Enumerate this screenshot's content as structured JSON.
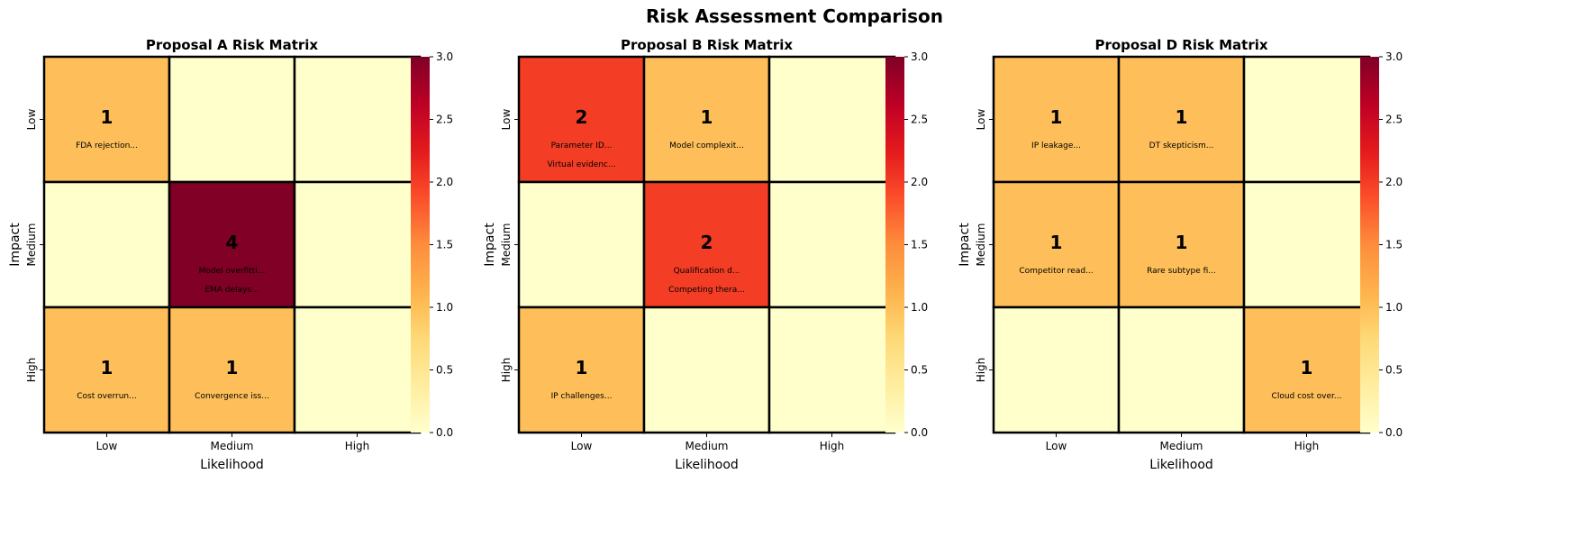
{
  "figure_title": "Risk Assessment Comparison",
  "colorbar_ticks": [
    "0.0",
    "0.5",
    "1.0",
    "1.5",
    "2.0",
    "2.5",
    "3.0"
  ],
  "colormap": [
    "#ffffcc",
    "#ffeda0",
    "#fed976",
    "#feb24c",
    "#fd8d3c",
    "#fc4e2a",
    "#e31a1c",
    "#bd0026",
    "#800026"
  ],
  "chart_data": [
    {
      "type": "heatmap",
      "title": "Proposal A Risk Matrix",
      "xlabel": "Likelihood",
      "ylabel": "Impact",
      "x_categories": [
        "Low",
        "Medium",
        "High"
      ],
      "y_categories": [
        "Low",
        "Medium",
        "High"
      ],
      "values": [
        [
          1,
          0,
          0
        ],
        [
          0,
          4,
          0
        ],
        [
          1,
          1,
          0
        ]
      ],
      "count_labels": [
        [
          "1",
          "",
          ""
        ],
        [
          "",
          "4",
          ""
        ],
        [
          "1",
          "1",
          ""
        ]
      ],
      "cell_labels": [
        [
          [
            "FDA rejection..."
          ],
          [],
          []
        ],
        [
          [],
          [
            "Model overfitti...",
            "EMA delays..."
          ],
          []
        ],
        [
          [
            "Cost overrun..."
          ],
          [
            "Convergence iss..."
          ],
          []
        ]
      ],
      "vmin": 0,
      "vmax": 3
    },
    {
      "type": "heatmap",
      "title": "Proposal B Risk Matrix",
      "xlabel": "Likelihood",
      "ylabel": "Impact",
      "x_categories": [
        "Low",
        "Medium",
        "High"
      ],
      "y_categories": [
        "Low",
        "Medium",
        "High"
      ],
      "values": [
        [
          2,
          1,
          0
        ],
        [
          0,
          2,
          0
        ],
        [
          1,
          0,
          0
        ]
      ],
      "count_labels": [
        [
          "2",
          "1",
          ""
        ],
        [
          "",
          "2",
          ""
        ],
        [
          "1",
          "",
          ""
        ]
      ],
      "cell_labels": [
        [
          [
            "Parameter ID...",
            "Virtual evidenc..."
          ],
          [
            "Model complexit..."
          ],
          []
        ],
        [
          [],
          [
            "Qualification d...",
            "Competing thera..."
          ],
          []
        ],
        [
          [
            "IP challenges..."
          ],
          [],
          []
        ]
      ],
      "vmin": 0,
      "vmax": 3
    },
    {
      "type": "heatmap",
      "title": "Proposal D Risk Matrix",
      "xlabel": "Likelihood",
      "ylabel": "Impact",
      "x_categories": [
        "Low",
        "Medium",
        "High"
      ],
      "y_categories": [
        "Low",
        "Medium",
        "High"
      ],
      "values": [
        [
          1,
          1,
          0
        ],
        [
          1,
          1,
          0
        ],
        [
          0,
          0,
          1
        ]
      ],
      "count_labels": [
        [
          "1",
          "1",
          ""
        ],
        [
          "1",
          "1",
          ""
        ],
        [
          "",
          "",
          "1"
        ]
      ],
      "cell_labels": [
        [
          [
            "IP leakage..."
          ],
          [
            "DT skepticism..."
          ],
          []
        ],
        [
          [
            "Competitor read..."
          ],
          [
            "Rare subtype fi..."
          ],
          []
        ],
        [
          [],
          [],
          [
            "Cloud cost over..."
          ]
        ]
      ],
      "vmin": 0,
      "vmax": 3
    }
  ]
}
